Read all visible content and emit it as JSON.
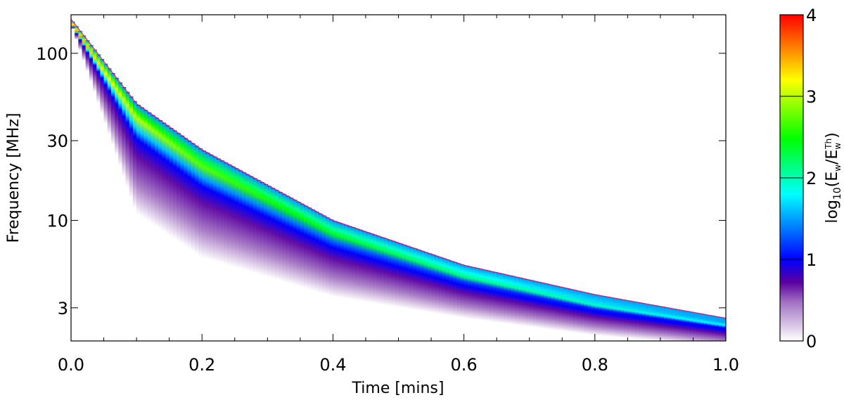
{
  "chart_data": {
    "type": "heatmap",
    "xlabel": "Time [mins]",
    "ylabel": "Frequency [MHz]",
    "xlim": [
      0.0,
      1.0
    ],
    "ylim": [
      1.9,
      170
    ],
    "y_scale": "log",
    "x_ticks": [
      {
        "value": 0.0,
        "label": "0.0"
      },
      {
        "value": 0.2,
        "label": "0.2"
      },
      {
        "value": 0.4,
        "label": "0.4"
      },
      {
        "value": 0.6,
        "label": "0.6"
      },
      {
        "value": 0.8,
        "label": "0.8"
      },
      {
        "value": 1.0,
        "label": "1.0"
      }
    ],
    "y_ticks": [
      {
        "value": 100,
        "label": "100"
      },
      {
        "value": 30,
        "label": "30"
      },
      {
        "value": 10,
        "label": "10"
      },
      {
        "value": 3,
        "label": "3"
      }
    ],
    "colorbar": {
      "label": "log10(Ew/Ew^Th)",
      "label_parts": {
        "log": "log",
        "log_sub": "10",
        "open": "(E",
        "num_sub": "w",
        "slash": "/E",
        "den_sub": "w",
        "den_sup": "Th",
        "close": ")"
      },
      "range": [
        0,
        4
      ],
      "ticks": [
        {
          "value": 0,
          "label": "0"
        },
        {
          "value": 1,
          "label": "1"
        },
        {
          "value": 2,
          "label": "2"
        },
        {
          "value": 3,
          "label": "3"
        },
        {
          "value": 4,
          "label": "4"
        }
      ],
      "colormap": [
        "#ffffff",
        "#5a00a0",
        "#0000ff",
        "#00ffff",
        "#00ff00",
        "#ffff00",
        "#ff0000"
      ]
    },
    "curves": [
      {
        "role": "upper_edge",
        "points": [
          [
            0.0,
            160
          ],
          [
            0.1,
            50
          ],
          [
            0.2,
            26.5
          ],
          [
            0.4,
            10
          ],
          [
            0.6,
            5.4
          ],
          [
            0.8,
            3.6
          ],
          [
            1.0,
            2.6
          ]
        ]
      },
      {
        "role": "peak_ridge",
        "points": [
          [
            0.0,
            150
          ],
          [
            0.1,
            41
          ],
          [
            0.2,
            21
          ],
          [
            0.4,
            8.3
          ],
          [
            0.6,
            4.6
          ],
          [
            0.8,
            3.1
          ],
          [
            1.0,
            2.35
          ]
        ]
      },
      {
        "role": "lower_fade",
        "points": [
          [
            0.0,
            150
          ],
          [
            0.1,
            11
          ],
          [
            0.2,
            6
          ],
          [
            0.4,
            3.5
          ],
          [
            0.6,
            2.6
          ],
          [
            0.8,
            2.05
          ],
          [
            1.0,
            1.75
          ]
        ]
      }
    ]
  }
}
